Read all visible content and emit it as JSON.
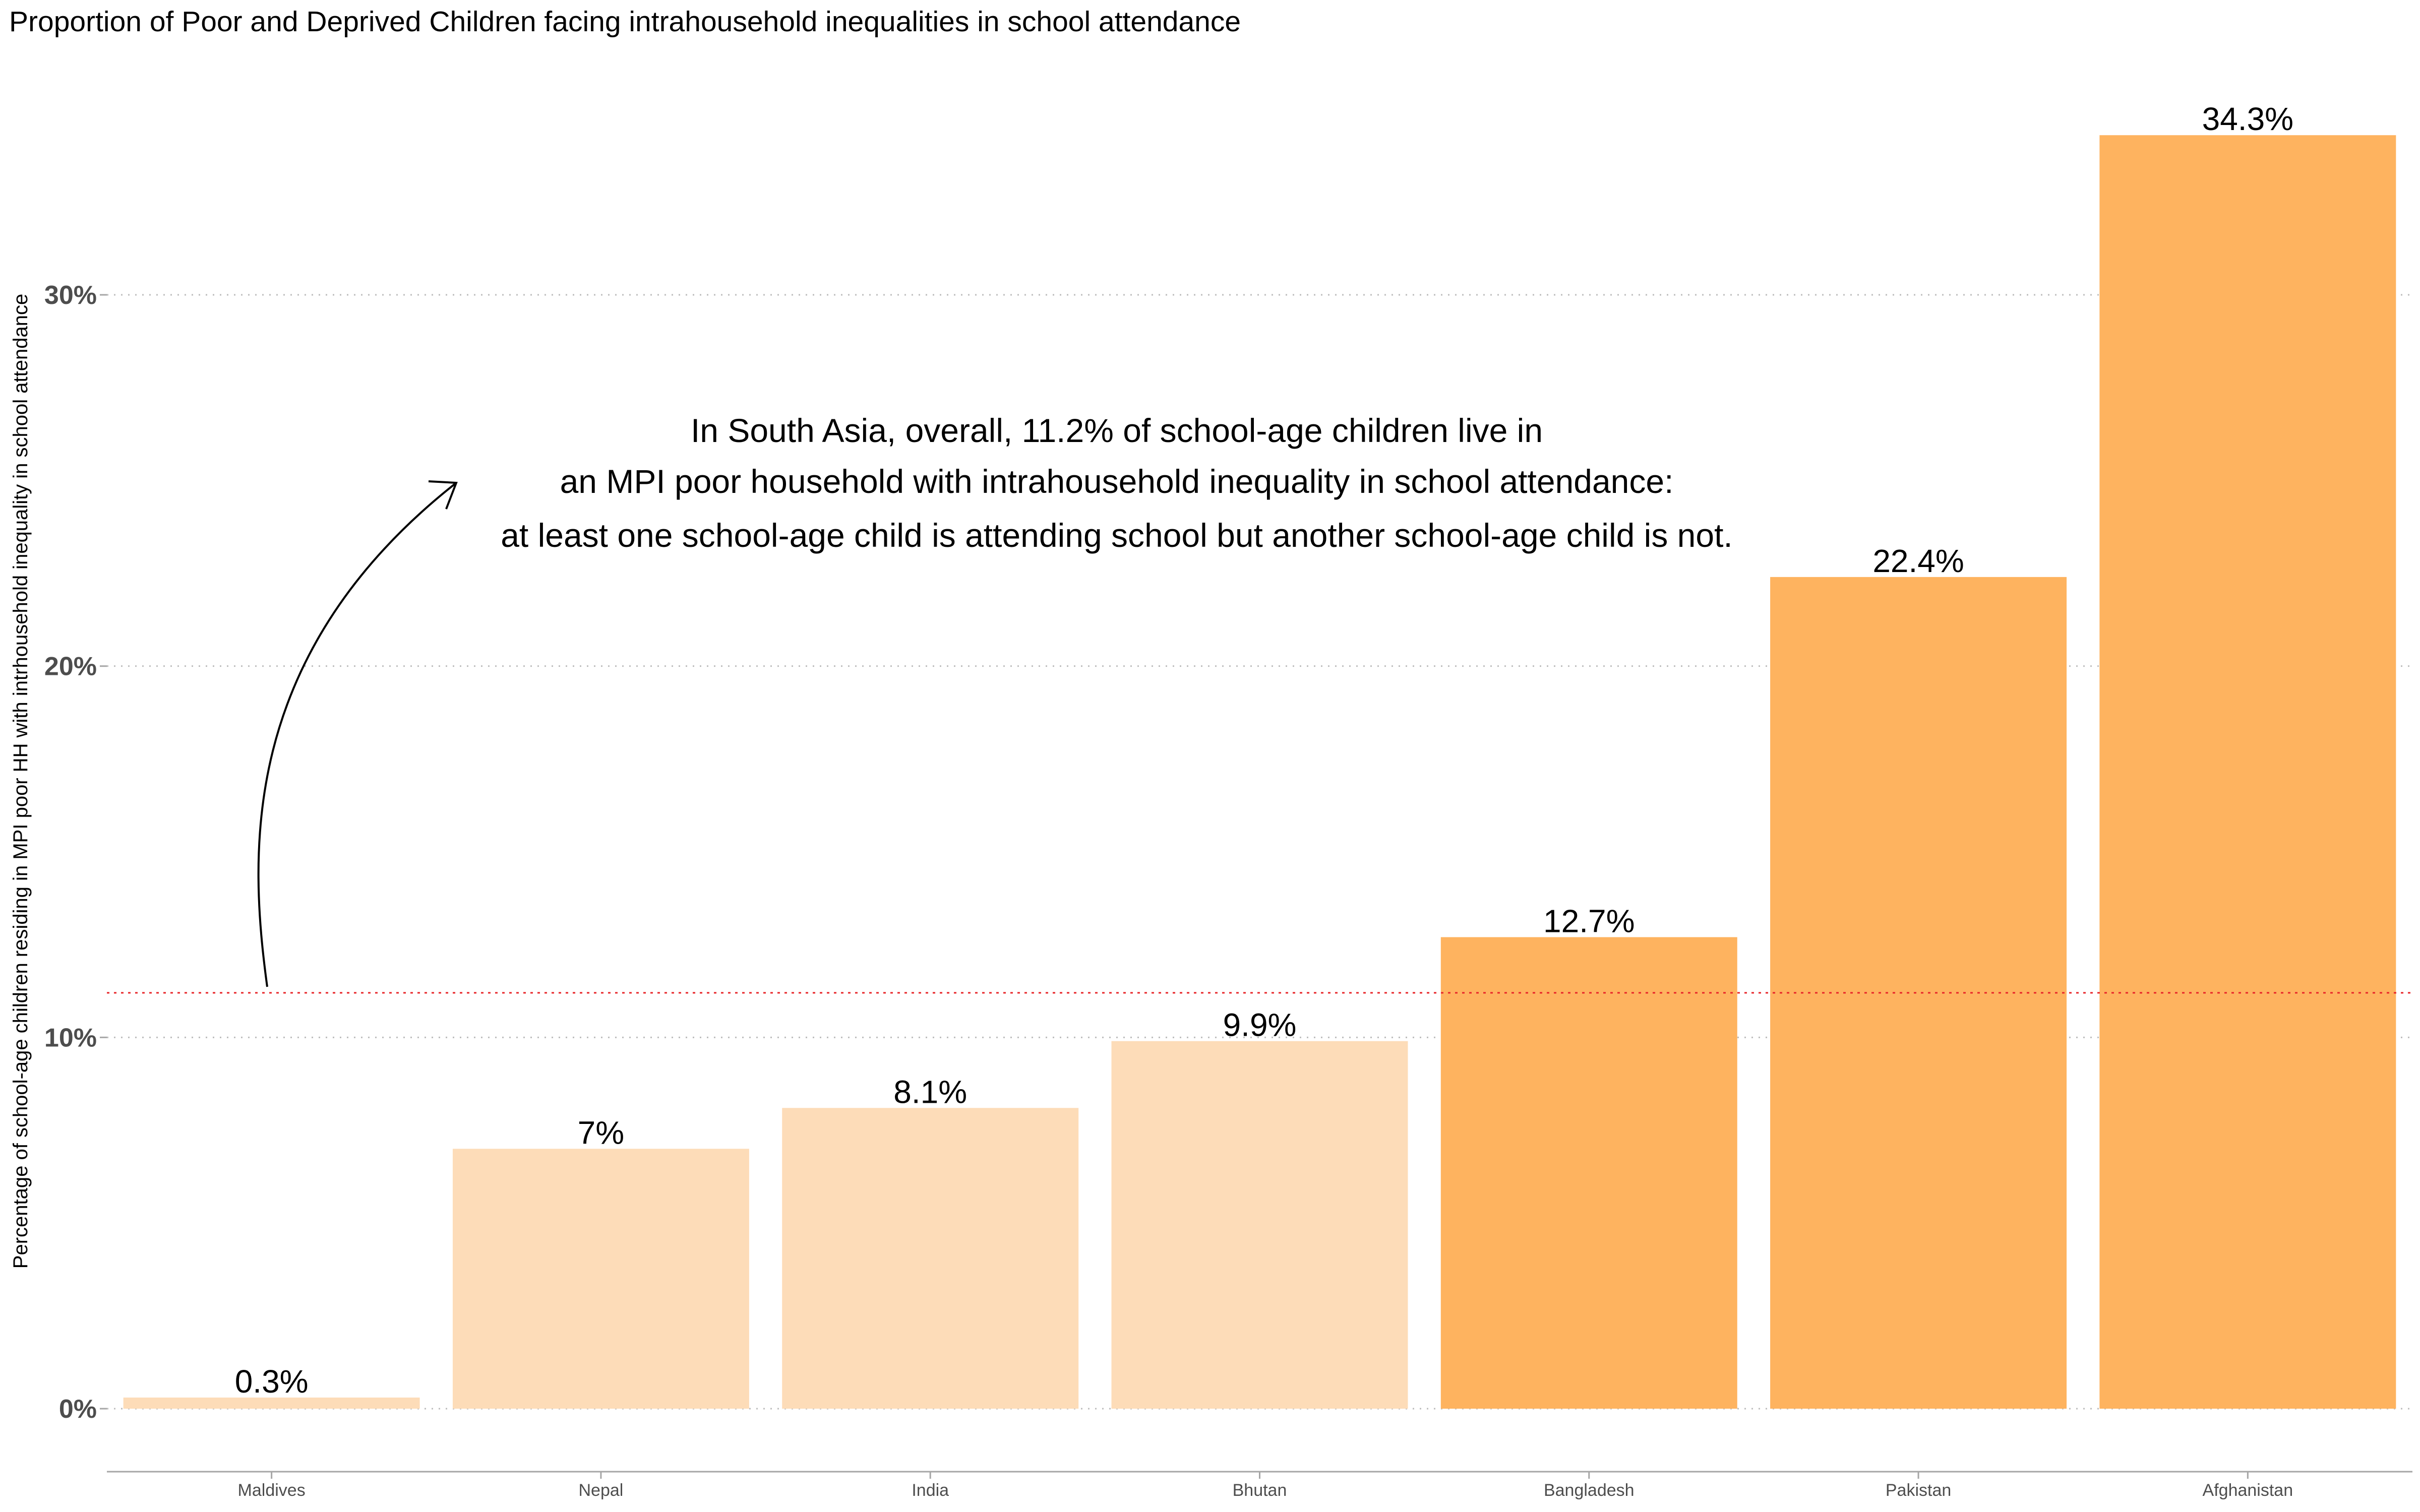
{
  "chart_data": {
    "type": "bar",
    "title": "Proportion of Poor and Deprived Children facing intrahousehold inequalities in school attendance",
    "xlabel": "",
    "ylabel": "Percentage of school-age children residing in MPI poor HH with intrhousehold inequality in school attendance",
    "categories": [
      "Maldives",
      "Nepal",
      "India",
      "Bhutan",
      "Bangladesh",
      "Pakistan",
      "Afghanistan"
    ],
    "values": [
      0.3,
      7,
      8.1,
      9.9,
      12.7,
      22.4,
      34.3
    ],
    "value_labels": [
      "0.3%",
      "7%",
      "8.1%",
      "9.9%",
      "12.7%",
      "22.4%",
      "34.3%"
    ],
    "bar_colors": [
      "#fddcb8",
      "#fddcb8",
      "#fddcb8",
      "#fddcb8",
      "#feb35f",
      "#feb35f",
      "#feb35f"
    ],
    "ylim": [
      -1.7,
      35.5
    ],
    "yticks": [
      0,
      10,
      20,
      30
    ],
    "ytick_labels": [
      "0%",
      "10%",
      "20%",
      "30%"
    ],
    "grid": "horizontal dotted",
    "reference_line": {
      "value": 11.2,
      "color": "#e8262a",
      "style": "dotted"
    },
    "annotation": {
      "lines": [
        "In South Asia, overall, 11.2% of school-age children live in",
        "an MPI poor household with intrahousehold inequality in school attendance:",
        "at least one school-age child is attending school but another school-age child is not."
      ]
    },
    "legend": "none"
  },
  "colors": {
    "background": "#ffffff",
    "grid": "#bdbdbd",
    "axis": "#a6a6a6",
    "tick_text": "#4d4d4d"
  }
}
